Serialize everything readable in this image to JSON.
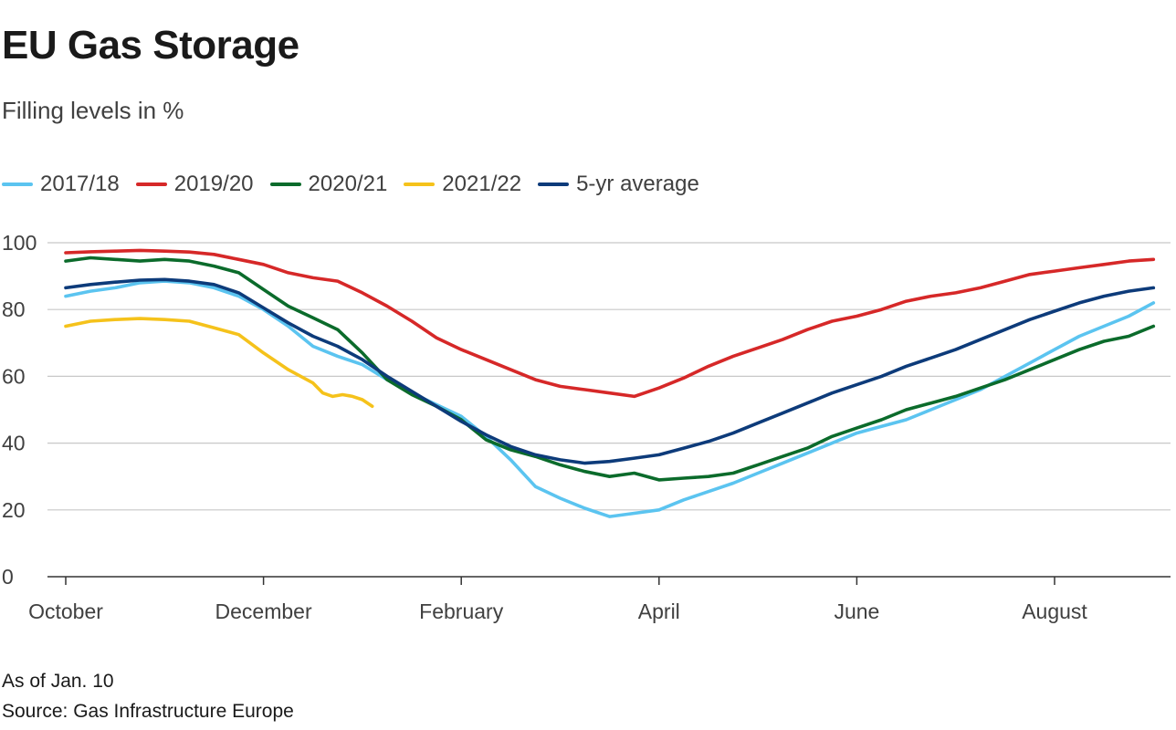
{
  "header": {
    "title": "EU Gas Storage",
    "subtitle": "Filling levels in %"
  },
  "footer": {
    "note": "As of Jan. 10",
    "source": "Source: Gas Infrastructure Europe"
  },
  "chart_data": {
    "type": "line",
    "title": "EU Gas Storage",
    "subtitle": "Filling levels in %",
    "xlabel": "",
    "ylabel": "",
    "x_unit": "month offset from Oct 1",
    "xlim": [
      0,
      11.2
    ],
    "ylim": [
      0,
      100
    ],
    "yticks": [
      0,
      20,
      40,
      60,
      80,
      100
    ],
    "grid": true,
    "legend_position": "top-left",
    "x_tick_positions": [
      0,
      2,
      4,
      6,
      8,
      10
    ],
    "x_tick_labels": [
      "October",
      "December",
      "February",
      "April",
      "June",
      "August"
    ],
    "series": [
      {
        "name": "2017/18",
        "color": "#5bc4f0",
        "x": [
          0,
          0.25,
          0.5,
          0.75,
          1,
          1.25,
          1.5,
          1.75,
          2,
          2.25,
          2.5,
          2.75,
          3,
          3.25,
          3.5,
          3.75,
          4,
          4.25,
          4.5,
          4.75,
          5,
          5.25,
          5.5,
          5.75,
          6,
          6.25,
          6.5,
          6.75,
          7,
          7.25,
          7.5,
          7.75,
          8,
          8.25,
          8.5,
          8.75,
          9,
          9.25,
          9.5,
          9.75,
          10,
          10.25,
          10.5,
          10.75,
          11
        ],
        "y": [
          84,
          85.5,
          86.5,
          88,
          88.5,
          88,
          86.5,
          84,
          80,
          75,
          69,
          66,
          63.5,
          59,
          55,
          51.5,
          48,
          42,
          35,
          27,
          23.5,
          20.5,
          18,
          19,
          20,
          23,
          25.5,
          28,
          31,
          34,
          37,
          40,
          43,
          45,
          47,
          50,
          53,
          56,
          60,
          64,
          68,
          72,
          75,
          78,
          82
        ]
      },
      {
        "name": "2019/20",
        "color": "#d62828",
        "x": [
          0,
          0.25,
          0.5,
          0.75,
          1,
          1.25,
          1.5,
          1.75,
          2,
          2.25,
          2.5,
          2.75,
          3,
          3.25,
          3.5,
          3.75,
          4,
          4.25,
          4.5,
          4.75,
          5,
          5.25,
          5.5,
          5.75,
          6,
          6.25,
          6.5,
          6.75,
          7,
          7.25,
          7.5,
          7.75,
          8,
          8.25,
          8.5,
          8.75,
          9,
          9.25,
          9.5,
          9.75,
          10,
          10.25,
          10.5,
          10.75,
          11
        ],
        "y": [
          97,
          97.3,
          97.5,
          97.7,
          97.5,
          97.2,
          96.5,
          95,
          93.5,
          91,
          89.5,
          88.5,
          85,
          81,
          76.5,
          71.5,
          68,
          65,
          62,
          59,
          57,
          56,
          55,
          54,
          56.5,
          59.5,
          63,
          66,
          68.5,
          71,
          74,
          76.5,
          78,
          80,
          82.5,
          84,
          85,
          86.5,
          88.5,
          90.5,
          91.5,
          92.5,
          93.5,
          94.5,
          95
        ]
      },
      {
        "name": "2020/21",
        "color": "#0b6b2b",
        "x": [
          0,
          0.25,
          0.5,
          0.75,
          1,
          1.25,
          1.5,
          1.75,
          2,
          2.25,
          2.5,
          2.75,
          3,
          3.25,
          3.5,
          3.75,
          4,
          4.25,
          4.5,
          4.75,
          5,
          5.25,
          5.5,
          5.75,
          6,
          6.25,
          6.5,
          6.75,
          7,
          7.25,
          7.5,
          7.75,
          8,
          8.25,
          8.5,
          8.75,
          9,
          9.25,
          9.5,
          9.75,
          10,
          10.25,
          10.5,
          10.75,
          11
        ],
        "y": [
          94.5,
          95.5,
          95,
          94.5,
          95,
          94.5,
          93,
          91,
          86,
          81,
          77.5,
          74,
          67,
          59,
          54.5,
          51,
          47,
          41,
          38,
          36,
          33.5,
          31.5,
          30,
          31,
          29,
          29.5,
          30,
          31,
          33.5,
          36,
          38.5,
          42,
          44.5,
          47,
          50,
          52,
          54,
          56.5,
          59,
          62,
          65,
          68,
          70.5,
          72,
          75
        ]
      },
      {
        "name": "2021/22",
        "color": "#f5c21b",
        "x": [
          0,
          0.25,
          0.5,
          0.75,
          1,
          1.25,
          1.5,
          1.75,
          2,
          2.25,
          2.5,
          2.6,
          2.7,
          2.8,
          2.9,
          3.0,
          3.1
        ],
        "y": [
          75,
          76.5,
          77,
          77.3,
          77,
          76.5,
          74.5,
          72.5,
          67,
          62,
          58,
          55,
          54,
          54.5,
          54,
          53,
          51
        ]
      },
      {
        "name": "5-yr average",
        "color": "#0d3b7a",
        "x": [
          0,
          0.25,
          0.5,
          0.75,
          1,
          1.25,
          1.5,
          1.75,
          2,
          2.25,
          2.5,
          2.75,
          3,
          3.25,
          3.5,
          3.75,
          4,
          4.25,
          4.5,
          4.75,
          5,
          5.25,
          5.5,
          5.75,
          6,
          6.25,
          6.5,
          6.75,
          7,
          7.25,
          7.5,
          7.75,
          8,
          8.25,
          8.5,
          8.75,
          9,
          9.25,
          9.5,
          9.75,
          10,
          10.25,
          10.5,
          10.75,
          11
        ],
        "y": [
          86.5,
          87.5,
          88.2,
          88.8,
          89,
          88.5,
          87.5,
          85,
          80.5,
          76,
          72,
          69,
          65,
          60,
          55.5,
          51,
          46.5,
          42.5,
          39,
          36.5,
          35,
          34,
          34.5,
          35.5,
          36.5,
          38.5,
          40.5,
          43,
          46,
          49,
          52,
          55,
          57.5,
          60,
          63,
          65.5,
          68,
          71,
          74,
          77,
          79.5,
          82,
          84,
          85.5,
          86.5
        ]
      }
    ]
  }
}
